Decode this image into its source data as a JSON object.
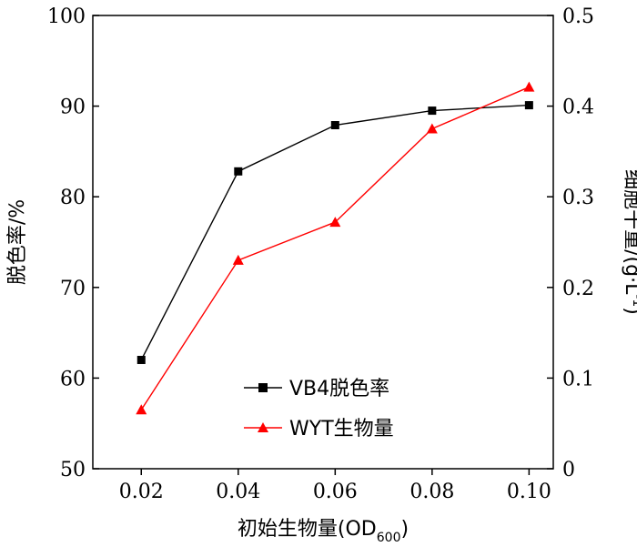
{
  "chart_data": {
    "type": "line",
    "x": [
      0.02,
      0.04,
      0.06,
      0.08,
      0.1
    ],
    "x_tick_labels": [
      "0.02",
      "0.04",
      "0.06",
      "0.08",
      "0.10"
    ],
    "xlabel": "初始生物量(OD",
    "xlabel_subscript": "600",
    "xlabel_suffix": ")",
    "xlim": [
      0.01,
      0.105
    ],
    "y_left": {
      "label": "脱色率/%",
      "lim": [
        50,
        100
      ],
      "ticks": [
        50,
        60,
        70,
        80,
        90,
        100
      ],
      "tick_labels": [
        "50",
        "60",
        "70",
        "80",
        "90",
        "100"
      ]
    },
    "y_right": {
      "label": "细胞干重/(g·L",
      "label_superscript": "-1",
      "label_suffix": ")",
      "lim": [
        0,
        0.5
      ],
      "ticks": [
        0,
        0.1,
        0.2,
        0.3,
        0.4,
        0.5
      ],
      "tick_labels": [
        "0",
        "0.1",
        "0.2",
        "0.3",
        "0.4",
        "0.5"
      ]
    },
    "series": [
      {
        "name": "VB4脱色率",
        "axis": "left",
        "color": "#000000",
        "marker": "square",
        "values": [
          62.0,
          82.8,
          87.9,
          89.5,
          90.1
        ]
      },
      {
        "name": "WYT生物量",
        "axis": "right",
        "color": "#ff0000",
        "marker": "triangle",
        "values": [
          0.065,
          0.23,
          0.272,
          0.375,
          0.421
        ]
      }
    ],
    "legend_position": "bottom-center",
    "grid": false
  }
}
